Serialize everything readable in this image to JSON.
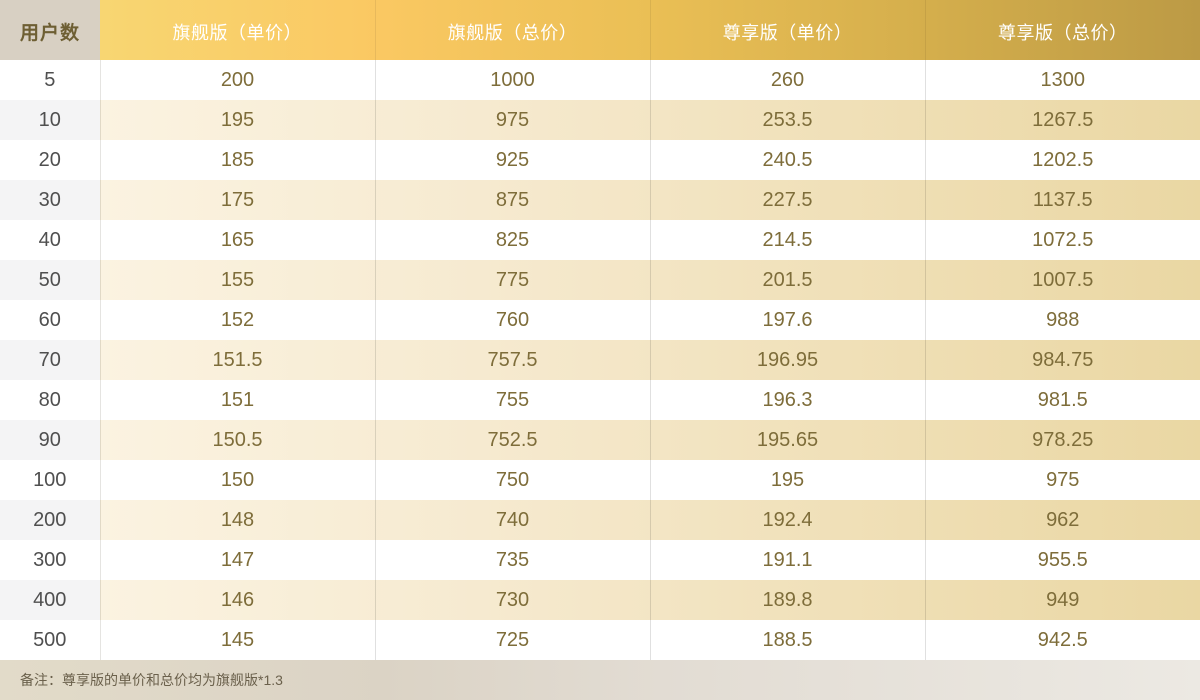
{
  "table": {
    "columns": [
      {
        "key": "users",
        "label": "用户数"
      },
      {
        "key": "flagship_unit",
        "label": "旗舰版（单价）"
      },
      {
        "key": "flagship_total",
        "label": "旗舰版（总价）"
      },
      {
        "key": "premium_unit",
        "label": "尊享版（单价）"
      },
      {
        "key": "premium_total",
        "label": "尊享版（总价）"
      }
    ],
    "rows": [
      [
        "5",
        "200",
        "1000",
        "260",
        "1300"
      ],
      [
        "10",
        "195",
        "975",
        "253.5",
        "1267.5"
      ],
      [
        "20",
        "185",
        "925",
        "240.5",
        "1202.5"
      ],
      [
        "30",
        "175",
        "875",
        "227.5",
        "1137.5"
      ],
      [
        "40",
        "165",
        "825",
        "214.5",
        "1072.5"
      ],
      [
        "50",
        "155",
        "775",
        "201.5",
        "1007.5"
      ],
      [
        "60",
        "152",
        "760",
        "197.6",
        "988"
      ],
      [
        "70",
        "151.5",
        "757.5",
        "196.95",
        "984.75"
      ],
      [
        "80",
        "151",
        "755",
        "196.3",
        "981.5"
      ],
      [
        "90",
        "150.5",
        "752.5",
        "195.65",
        "978.25"
      ],
      [
        "100",
        "150",
        "750",
        "195",
        "975"
      ],
      [
        "200",
        "148",
        "740",
        "192.4",
        "962"
      ],
      [
        "300",
        "147",
        "735",
        "191.1",
        "955.5"
      ],
      [
        "400",
        "146",
        "730",
        "189.8",
        "949"
      ],
      [
        "500",
        "145",
        "725",
        "188.5",
        "942.5"
      ]
    ]
  },
  "footer": {
    "note": "备注：尊享版的单价和总价均为旗舰版*1.3"
  },
  "colors": {
    "header_gradient_start": "#f8d672",
    "header_gradient_end": "#bc9a45",
    "header_users_bg": "#d8d0c3",
    "header_users_text": "#6e5f33",
    "header_text": "#ffffff",
    "stripe_gradient_start": "#fbf3e1",
    "stripe_gradient_end": "#ead7a3",
    "stripe_users_bg": "#f4f4f5",
    "value_text": "#7e6d3a",
    "users_text": "#4f4f4f",
    "footer_bg_start": "#e2dbc9",
    "footer_bg_end": "#ece9e3",
    "footer_text": "#6b614c"
  }
}
